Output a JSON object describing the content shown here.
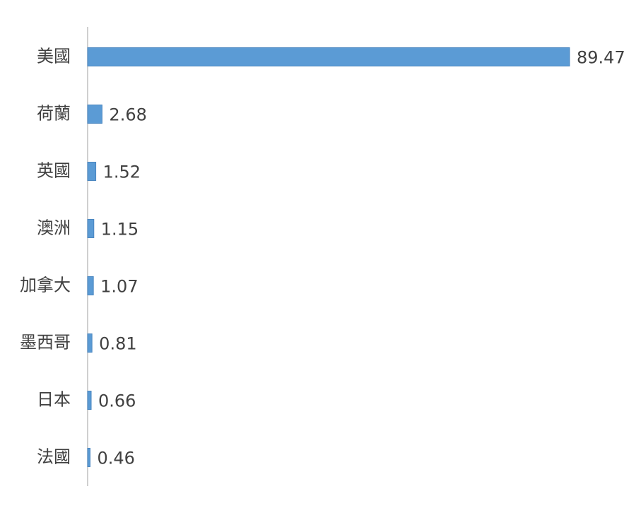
{
  "chart_data": {
    "type": "barh",
    "categories": [
      "美國",
      "荷蘭",
      "英國",
      "澳洲",
      "加拿大",
      "墨西哥",
      "日本",
      "法國"
    ],
    "values": [
      89.47,
      2.68,
      1.52,
      1.15,
      1.07,
      0.81,
      0.66,
      0.46
    ],
    "color": "#5b9bd5"
  }
}
